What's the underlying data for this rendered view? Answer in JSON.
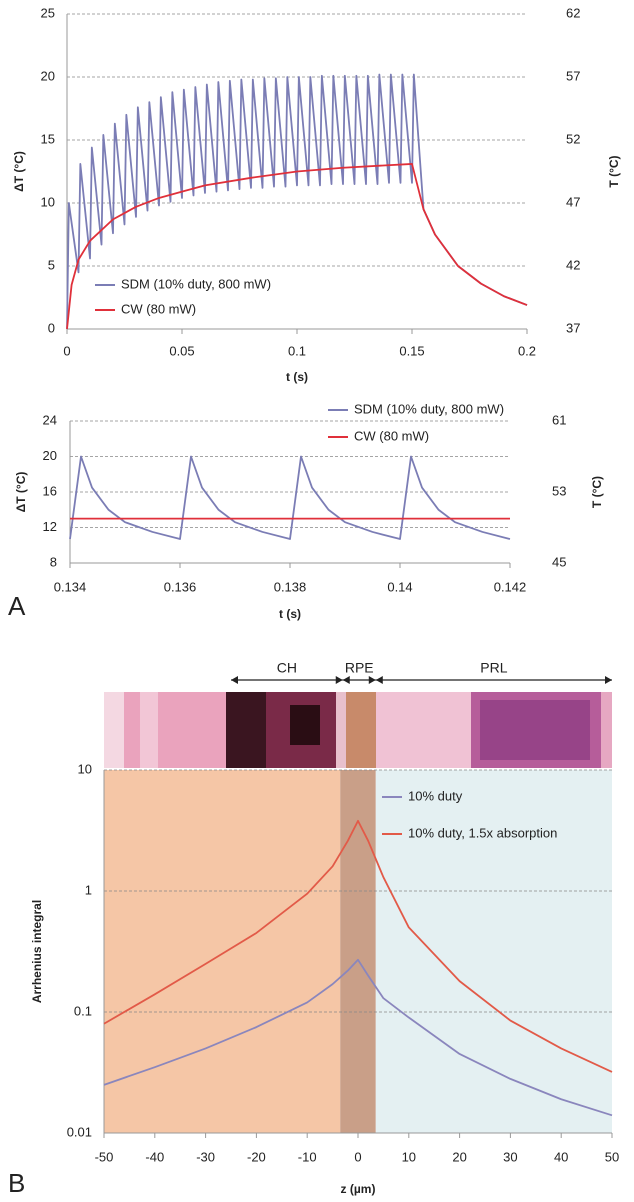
{
  "chart_data": [
    {
      "type": "line",
      "xlabel": "t (s)",
      "ylabel": "ΔT (°C)",
      "y2label": "T (°C)",
      "xlim": [
        0,
        0.2
      ],
      "xticks": [
        0,
        0.05,
        0.1,
        0.15,
        0.2
      ],
      "ylim": [
        0,
        25
      ],
      "yticks": [
        0,
        5,
        10,
        15,
        20,
        25
      ],
      "y2lim": [
        37,
        62
      ],
      "y2ticks": [
        37,
        42,
        47,
        52,
        57,
        62
      ],
      "grid": true,
      "legend": "lower left",
      "series": [
        {
          "name": "SDM (10% duty, 800 mW)",
          "color": "#7b7db5",
          "x": [
            0,
            0.0008,
            0.005,
            0.0058,
            0.01,
            0.0108,
            0.015,
            0.0158,
            0.02,
            0.0208,
            0.025,
            0.0258,
            0.03,
            0.0308,
            0.035,
            0.0358,
            0.04,
            0.0408,
            0.045,
            0.0458,
            0.05,
            0.0508,
            0.055,
            0.0558,
            0.06,
            0.0608,
            0.065,
            0.0658,
            0.07,
            0.0708,
            0.075,
            0.0758,
            0.08,
            0.0808,
            0.085,
            0.0858,
            0.09,
            0.0908,
            0.095,
            0.0958,
            0.1,
            0.1008,
            0.105,
            0.1058,
            0.11,
            0.1108,
            0.115,
            0.1158,
            0.12,
            0.1208,
            0.125,
            0.1258,
            0.13,
            0.1308,
            0.135,
            0.1358,
            0.14,
            0.1408,
            0.145,
            0.1458,
            0.15,
            0.1508,
            0.155,
            0.16,
            0.17,
            0.18,
            0.19,
            0.2
          ],
          "values": [
            0,
            10.0,
            4.5,
            13.1,
            5.6,
            14.4,
            6.7,
            15.4,
            7.6,
            16.3,
            8.3,
            17.0,
            8.9,
            17.6,
            9.4,
            18.0,
            9.8,
            18.4,
            10.1,
            18.8,
            10.4,
            19.0,
            10.6,
            19.2,
            10.8,
            19.4,
            10.9,
            19.6,
            11.0,
            19.7,
            11.1,
            19.8,
            11.2,
            19.8,
            11.2,
            19.9,
            11.3,
            19.9,
            11.3,
            20.0,
            11.4,
            20.0,
            11.4,
            20.0,
            11.4,
            20.1,
            11.5,
            20.1,
            11.5,
            20.1,
            11.5,
            20.1,
            11.5,
            20.1,
            11.5,
            20.2,
            11.6,
            20.2,
            11.6,
            20.2,
            11.6,
            20.2,
            9.5,
            7.5,
            5.0,
            3.6,
            2.6,
            1.9
          ]
        },
        {
          "name": "CW (80 mW)",
          "color": "#e0303a",
          "x": [
            0,
            0.002,
            0.005,
            0.01,
            0.02,
            0.03,
            0.04,
            0.05,
            0.06,
            0.08,
            0.1,
            0.12,
            0.15,
            0.155,
            0.16,
            0.17,
            0.18,
            0.19,
            0.2
          ],
          "values": [
            0,
            3.5,
            5.5,
            7.0,
            8.7,
            9.7,
            10.4,
            10.9,
            11.4,
            12.0,
            12.5,
            12.8,
            13.1,
            9.5,
            7.5,
            5.0,
            3.6,
            2.6,
            1.9
          ]
        }
      ]
    },
    {
      "type": "line",
      "xlabel": "t (s)",
      "ylabel": "ΔT (°C)",
      "y2label": "T (°C)",
      "panel": "A",
      "xlim": [
        0.134,
        0.142
      ],
      "xticks": [
        0.134,
        0.136,
        0.138,
        0.14,
        0.142
      ],
      "ylim": [
        8,
        24
      ],
      "yticks": [
        8,
        12,
        16,
        20,
        24
      ],
      "y2lim": [
        45,
        61
      ],
      "y2ticks": [
        45,
        53,
        61
      ],
      "grid": true,
      "legend": "upper right",
      "series": [
        {
          "name": "SDM (10% duty, 800 mW)",
          "color": "#7b7db5",
          "x": [
            0.134,
            0.1342,
            0.1344,
            0.1347,
            0.135,
            0.1355,
            0.136,
            0.1362,
            0.1364,
            0.1367,
            0.137,
            0.1375,
            0.138,
            0.1382,
            0.1384,
            0.1387,
            0.139,
            0.1395,
            0.14,
            0.1402,
            0.1404,
            0.1407,
            0.141,
            0.1415,
            0.142
          ],
          "values": [
            10.7,
            20.0,
            16.5,
            14.0,
            12.6,
            11.5,
            10.7,
            20.0,
            16.5,
            14.0,
            12.6,
            11.5,
            10.7,
            20.0,
            16.5,
            14.0,
            12.6,
            11.5,
            10.7,
            20.0,
            16.5,
            14.0,
            12.6,
            11.5,
            10.7
          ]
        },
        {
          "name": "CW (80 mW)",
          "color": "#e0303a",
          "x": [
            0.134,
            0.142
          ],
          "values": [
            13,
            13
          ]
        }
      ]
    },
    {
      "type": "line",
      "xlabel": "z (µm)",
      "ylabel": "Arrhenius integral",
      "panel": "B",
      "log_y": true,
      "xlim": [
        -50,
        50
      ],
      "xticks": [
        -50,
        -40,
        -30,
        -20,
        -10,
        0,
        10,
        20,
        30,
        40,
        50
      ],
      "ylim": [
        0.01,
        10
      ],
      "yticks": [
        0.01,
        0.1,
        1,
        10
      ],
      "grid": true,
      "legend": "upper right",
      "bands": [
        {
          "range": [
            -50,
            -3.5
          ],
          "color": "#f5c6a6"
        },
        {
          "range": [
            -3.5,
            3.5
          ],
          "color": "#c99f88"
        },
        {
          "range": [
            3.5,
            50
          ],
          "color": "#e4f0f2"
        }
      ],
      "spans": [
        {
          "label": "CH",
          "range": [
            -25,
            -3
          ]
        },
        {
          "label": "RPE",
          "range": [
            -3,
            3.5
          ]
        },
        {
          "label": "PRL",
          "range": [
            3.5,
            50
          ]
        }
      ],
      "x": [
        -50,
        -40,
        -30,
        -20,
        -10,
        -5,
        -2,
        0,
        2,
        5,
        10,
        20,
        30,
        40,
        50
      ],
      "series": [
        {
          "name": "10% duty",
          "color": "#8a86bd",
          "values": [
            0.025,
            0.035,
            0.05,
            0.075,
            0.12,
            0.17,
            0.22,
            0.27,
            0.2,
            0.13,
            0.09,
            0.045,
            0.028,
            0.019,
            0.014
          ]
        },
        {
          "name": "10% duty, 1.5x absorption",
          "color": "#e25a48",
          "values": [
            0.08,
            0.14,
            0.25,
            0.45,
            0.95,
            1.6,
            2.6,
            3.8,
            2.6,
            1.3,
            0.5,
            0.18,
            0.085,
            0.05,
            0.032
          ]
        }
      ]
    }
  ]
}
